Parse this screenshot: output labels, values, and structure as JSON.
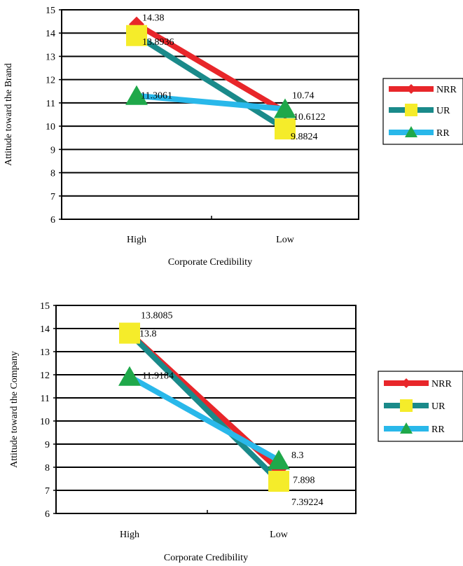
{
  "chart_data": [
    {
      "type": "line",
      "categories": [
        "High",
        "Low"
      ],
      "xlabel": "Corporate Credibility",
      "ylabel": "Attitude toward the Brand",
      "ylim": [
        6,
        15
      ],
      "yticks": [
        "6",
        "7",
        "8",
        "9",
        "10",
        "11",
        "12",
        "13",
        "14",
        "15"
      ],
      "grid": true,
      "legend": "right",
      "series": [
        {
          "name": "NRR",
          "values": [
            14.38,
            10.6122
          ],
          "labels": [
            "14.38",
            "10.6122"
          ],
          "color": "#e8262a",
          "marker": "diamond"
        },
        {
          "name": "UR",
          "values": [
            13.8936,
            9.8824
          ],
          "labels": [
            "13.8936",
            "9.8824"
          ],
          "color": "#1a8a8a",
          "marker": "square"
        },
        {
          "name": "RR",
          "values": [
            11.3061,
            10.74
          ],
          "labels": [
            "11.3061",
            "10.74"
          ],
          "color": "#29b8ea",
          "marker": "triangle"
        }
      ]
    },
    {
      "type": "line",
      "categories": [
        "High",
        "Low"
      ],
      "xlabel": "Corporate Credibility",
      "ylabel": "Attitude toward the Company",
      "ylim": [
        6,
        15
      ],
      "yticks": [
        "6",
        "7",
        "8",
        "9",
        "10",
        "11",
        "12",
        "13",
        "14",
        "15"
      ],
      "grid": true,
      "legend": "right",
      "series": [
        {
          "name": "NRR",
          "values": [
            13.8085,
            7.898
          ],
          "labels": [
            "13.8085",
            "7.898"
          ],
          "color": "#e8262a",
          "marker": "diamond"
        },
        {
          "name": "UR",
          "values": [
            13.8,
            7.39224
          ],
          "labels": [
            "13.8",
            "7.39224"
          ],
          "color": "#1a8a8a",
          "marker": "square"
        },
        {
          "name": "RR",
          "values": [
            11.9184,
            8.3
          ],
          "labels": [
            "11.9184",
            "8.3"
          ],
          "color": "#29b8ea",
          "marker": "triangle"
        }
      ]
    }
  ],
  "colors": {
    "marker_diamond": "#e8262a",
    "marker_square": "#f5ec2a",
    "marker_triangle": "#1fa84a",
    "grid": "#000000"
  }
}
